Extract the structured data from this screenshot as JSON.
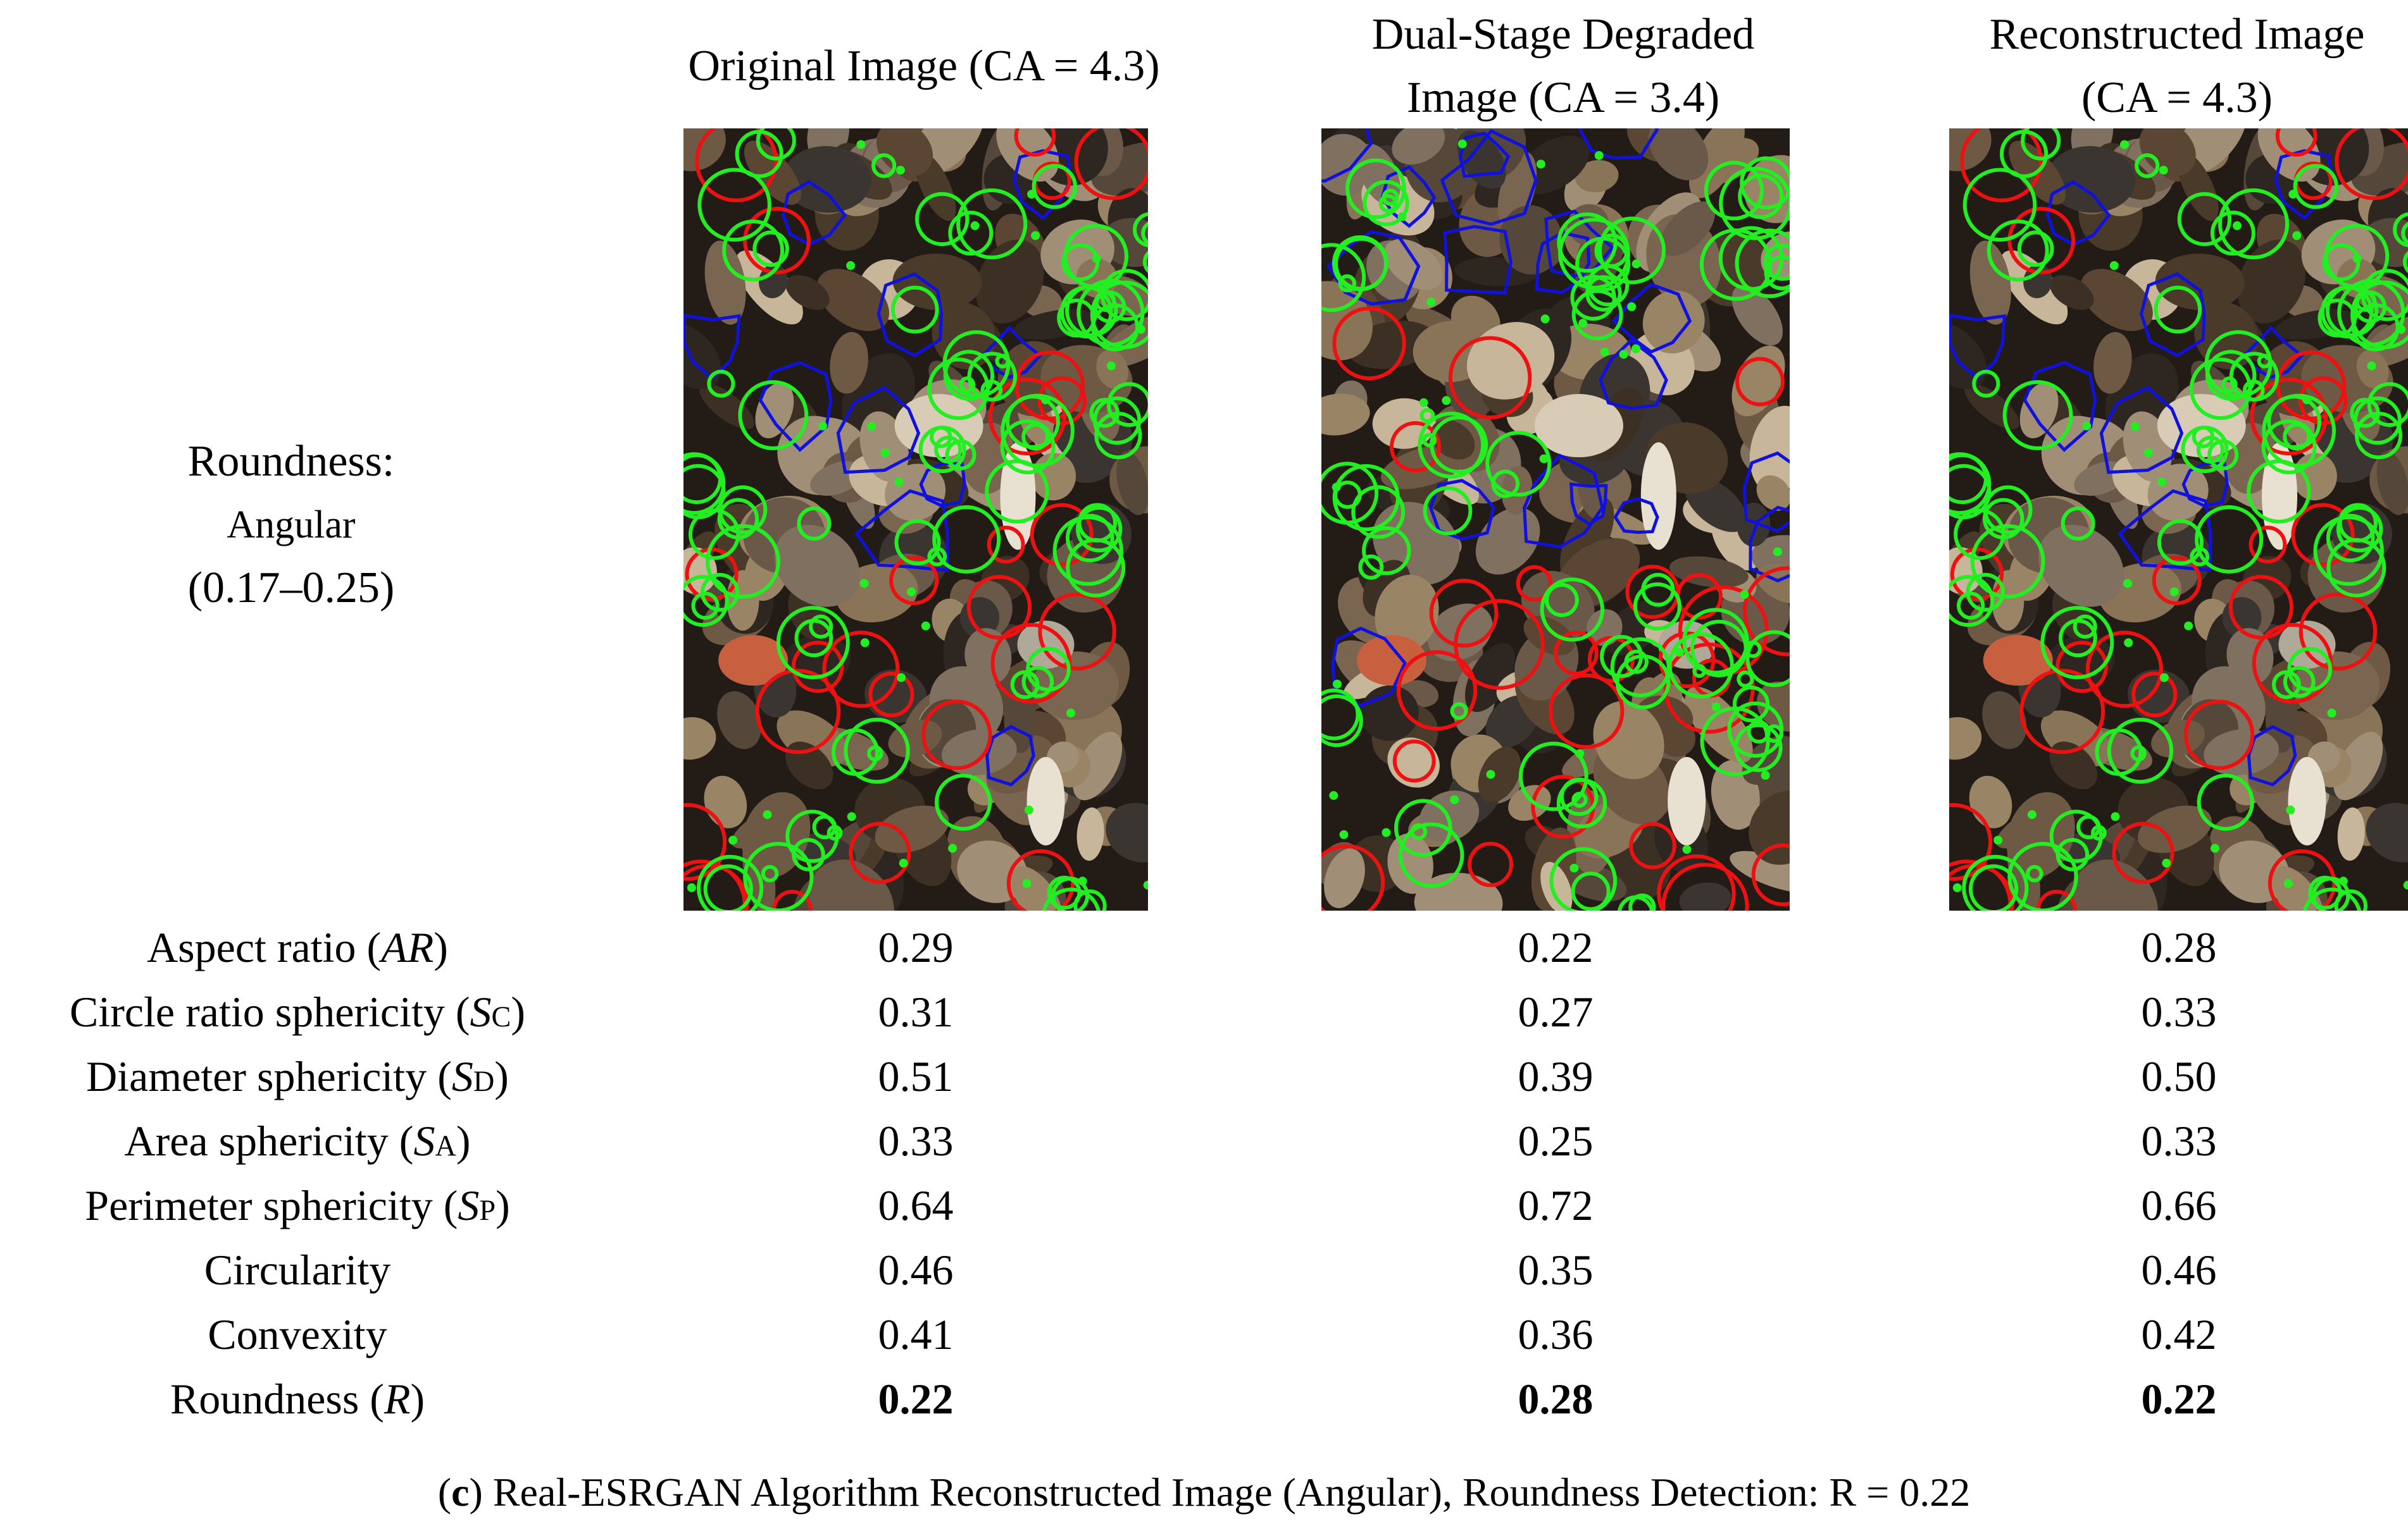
{
  "columns": [
    {
      "header_lines": [
        "Original Image (CA = 4.3)"
      ]
    },
    {
      "header_lines": [
        "Dual-Stage Degraded",
        "Image (CA = 3.4)"
      ]
    },
    {
      "header_lines": [
        "Reconstructed Image",
        "(CA = 4.3)"
      ]
    }
  ],
  "row_label": {
    "line1": "Roundness:",
    "line2": "Angular",
    "line3": "(0.17–0.25)"
  },
  "metrics": [
    {
      "pre": "Aspect ratio (",
      "sym": "AR",
      "sub": "",
      "post": ")",
      "values": [
        "0.29",
        "0.22",
        "0.28"
      ],
      "bold": false
    },
    {
      "pre": "Circle ratio sphericity (",
      "sym": "S",
      "sub": "C",
      "post": ")",
      "values": [
        "0.31",
        "0.27",
        "0.33"
      ],
      "bold": false
    },
    {
      "pre": "Diameter sphericity (",
      "sym": "S",
      "sub": "D",
      "post": ")",
      "values": [
        "0.51",
        "0.39",
        "0.50"
      ],
      "bold": false
    },
    {
      "pre": "Area sphericity (",
      "sym": "S",
      "sub": "A",
      "post": ")",
      "values": [
        "0.33",
        "0.25",
        "0.33"
      ],
      "bold": false
    },
    {
      "pre": "Perimeter sphericity (",
      "sym": "S",
      "sub": "P",
      "post": ")",
      "values": [
        "0.64",
        "0.72",
        "0.66"
      ],
      "bold": false
    },
    {
      "pre": "Circularity",
      "sym": "",
      "sub": "",
      "post": "",
      "values": [
        "0.46",
        "0.35",
        "0.46"
      ],
      "bold": false
    },
    {
      "pre": "Convexity",
      "sym": "",
      "sub": "",
      "post": "",
      "values": [
        "0.41",
        "0.36",
        "0.42"
      ],
      "bold": false
    },
    {
      "pre": "Roundness (",
      "sym": "R",
      "sub": "",
      "post": ")",
      "values": [
        "0.22",
        "0.28",
        "0.22"
      ],
      "bold": true
    }
  ],
  "caption": {
    "letter": "c",
    "pre": "(",
    "post": ") Real-ESRGAN Algorithm Reconstructed Image (Angular), Roundness Detection: R = 0.22"
  },
  "colors": {
    "detected_circle": "#22ee22",
    "inscribed_circle": "#ee1111",
    "particle_contour": "#1111dd"
  }
}
